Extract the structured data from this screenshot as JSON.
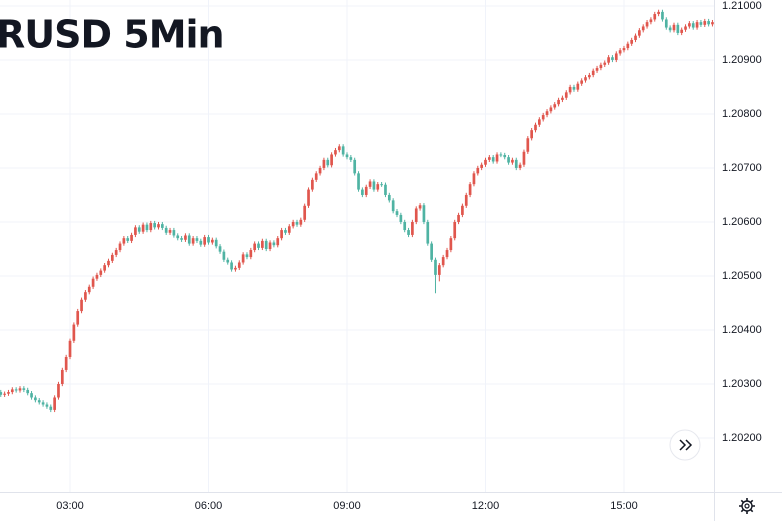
{
  "chart_data": {
    "type": "candlestick",
    "title": "RUSD 5Min",
    "up_color": "#e0564d",
    "down_color": "#4fb3a3",
    "grid": true,
    "xlim": [
      89,
      1017
    ],
    "ylim": [
      1.201,
      1.21011
    ],
    "xticks": [
      {
        "value": 180,
        "label": "03:00"
      },
      {
        "value": 360,
        "label": "06:00"
      },
      {
        "value": 540,
        "label": "09:00"
      },
      {
        "value": 720,
        "label": "12:00"
      },
      {
        "value": 900,
        "label": "15:00"
      }
    ],
    "yticks": [
      {
        "value": 1.202,
        "label": "1.20200"
      },
      {
        "value": 1.203,
        "label": "1.20300"
      },
      {
        "value": 1.204,
        "label": "1.20400"
      },
      {
        "value": 1.205,
        "label": "1.20500"
      },
      {
        "value": 1.206,
        "label": "1.20600"
      },
      {
        "value": 1.207,
        "label": "1.20700"
      },
      {
        "value": 1.208,
        "label": "1.20800"
      },
      {
        "value": 1.209,
        "label": "1.20900"
      },
      {
        "value": 1.21,
        "label": "1.21000"
      }
    ],
    "x": [
      90,
      95,
      100,
      105,
      110,
      115,
      120,
      125,
      130,
      135,
      140,
      145,
      150,
      155,
      160,
      165,
      170,
      175,
      180,
      185,
      190,
      195,
      200,
      205,
      210,
      215,
      220,
      225,
      230,
      235,
      240,
      245,
      250,
      255,
      260,
      265,
      270,
      275,
      280,
      285,
      290,
      295,
      300,
      305,
      310,
      315,
      320,
      325,
      330,
      335,
      340,
      345,
      350,
      355,
      360,
      365,
      370,
      375,
      380,
      385,
      390,
      395,
      400,
      405,
      410,
      415,
      420,
      425,
      430,
      435,
      440,
      445,
      450,
      455,
      460,
      465,
      470,
      475,
      480,
      485,
      490,
      495,
      500,
      505,
      510,
      515,
      520,
      525,
      530,
      535,
      540,
      545,
      550,
      555,
      560,
      565,
      570,
      575,
      580,
      585,
      590,
      595,
      600,
      605,
      610,
      615,
      620,
      625,
      630,
      635,
      640,
      645,
      650,
      655,
      660,
      665,
      670,
      675,
      680,
      685,
      690,
      695,
      700,
      705,
      710,
      715,
      720,
      725,
      730,
      735,
      740,
      745,
      750,
      755,
      760,
      765,
      770,
      775,
      780,
      785,
      790,
      795,
      800,
      805,
      810,
      815,
      820,
      825,
      830,
      835,
      840,
      845,
      850,
      855,
      860,
      865,
      870,
      875,
      880,
      885,
      890,
      895,
      900,
      905,
      910,
      915,
      920,
      925,
      930,
      935,
      940,
      945,
      950,
      955,
      960,
      965,
      970,
      975,
      980,
      985,
      990,
      995,
      1000,
      1005,
      1010,
      1015
    ],
    "open": [
      1.20285,
      1.2028,
      1.20282,
      1.20285,
      1.2029,
      1.20288,
      1.20292,
      1.20289,
      1.20283,
      1.20275,
      1.2027,
      1.20266,
      1.20262,
      1.20258,
      1.20252,
      1.20275,
      1.203,
      1.20326,
      1.2035,
      1.2038,
      1.2041,
      1.20435,
      1.20456,
      1.2047,
      1.2048,
      1.20495,
      1.20502,
      1.2051,
      1.2052,
      1.20528,
      1.20539,
      1.20548,
      1.2056,
      1.2057,
      1.20565,
      1.20576,
      1.2059,
      1.20582,
      1.20595,
      1.20585,
      1.20598,
      1.2059,
      1.20596,
      1.20589,
      1.2058,
      1.20585,
      1.20575,
      1.2057,
      1.20567,
      1.20575,
      1.2056,
      1.2057,
      1.20565,
      1.20558,
      1.20572,
      1.20562,
      1.20567,
      1.20555,
      1.20545,
      1.2053,
      1.20525,
      1.20512,
      1.20515,
      1.20525,
      1.2054,
      1.20535,
      1.20548,
      1.2056,
      1.20552,
      1.20565,
      1.2055,
      1.20562,
      1.20557,
      1.2057,
      1.20585,
      1.2058,
      1.20592,
      1.206,
      1.20595,
      1.20604,
      1.2063,
      1.2066,
      1.20678,
      1.2069,
      1.207,
      1.20715,
      1.20705,
      1.20725,
      1.20733,
      1.2074,
      1.20725,
      1.2072,
      1.20715,
      1.2069,
      1.2066,
      1.2065,
      1.20665,
      1.20675,
      1.2066,
      1.2067,
      1.20669,
      1.2065,
      1.2064,
      1.2062,
      1.20613,
      1.206,
      1.20585,
      1.20576,
      1.206,
      1.20625,
      1.20631,
      1.206,
      1.2056,
      1.2053,
      1.20502,
      1.2052,
      1.20535,
      1.20548,
      1.2057,
      1.206,
      1.20613,
      1.2063,
      1.2065,
      1.2067,
      1.2069,
      1.207,
      1.20706,
      1.20715,
      1.2072,
      1.20712,
      1.20725,
      1.20724,
      1.2072,
      1.2071,
      1.20715,
      1.207,
      1.20706,
      1.2073,
      1.20755,
      1.2077,
      1.2078,
      1.2079,
      1.20798,
      1.20805,
      1.20812,
      1.20818,
      1.20826,
      1.2083,
      1.2084,
      1.2085,
      1.20845,
      1.20856,
      1.20862,
      1.20868,
      1.20872,
      1.2088,
      1.20885,
      1.20891,
      1.20895,
      1.20905,
      1.209,
      1.20912,
      1.20918,
      1.20922,
      1.2093,
      1.20937,
      1.20945,
      1.20955,
      1.20962,
      1.2097,
      1.20975,
      1.20985,
      1.20989,
      1.20975,
      1.2096,
      1.20955,
      1.20965,
      1.2095,
      1.20956,
      1.20962,
      1.20968,
      1.2096,
      1.2097,
      1.20965,
      1.20972,
      1.20966
    ],
    "high": [
      1.20289,
      1.20286,
      1.20289,
      1.20294,
      1.20294,
      1.20296,
      1.20296,
      1.20293,
      1.20287,
      1.20279,
      1.20274,
      1.2027,
      1.20266,
      1.20262,
      1.20279,
      1.20304,
      1.2033,
      1.20354,
      1.20384,
      1.20414,
      1.20439,
      1.2046,
      1.20474,
      1.20484,
      1.20499,
      1.20506,
      1.20514,
      1.20524,
      1.20532,
      1.20543,
      1.20552,
      1.20564,
      1.20574,
      1.20574,
      1.2058,
      1.20594,
      1.20594,
      1.20599,
      1.20599,
      1.20602,
      1.20602,
      1.206,
      1.206,
      1.20593,
      1.20589,
      1.20589,
      1.20579,
      1.20574,
      1.20579,
      1.20579,
      1.20574,
      1.20574,
      1.20569,
      1.20576,
      1.20576,
      1.20571,
      1.20571,
      1.20559,
      1.20549,
      1.20534,
      1.20529,
      1.20519,
      1.20529,
      1.20544,
      1.20544,
      1.20552,
      1.20564,
      1.20564,
      1.20569,
      1.20569,
      1.20566,
      1.20566,
      1.20574,
      1.20589,
      1.20589,
      1.20596,
      1.20604,
      1.20604,
      1.20608,
      1.20634,
      1.20664,
      1.20682,
      1.20694,
      1.20704,
      1.20719,
      1.20719,
      1.20729,
      1.20737,
      1.20744,
      1.20744,
      1.20729,
      1.20724,
      1.20719,
      1.20694,
      1.20664,
      1.20669,
      1.20679,
      1.20679,
      1.20674,
      1.20674,
      1.20673,
      1.20654,
      1.20644,
      1.20624,
      1.20617,
      1.20604,
      1.20589,
      1.20604,
      1.20629,
      1.20635,
      1.20635,
      1.20604,
      1.20564,
      1.20534,
      1.20524,
      1.20539,
      1.20552,
      1.20574,
      1.20604,
      1.20617,
      1.20634,
      1.20654,
      1.20674,
      1.20694,
      1.20704,
      1.2071,
      1.20719,
      1.20724,
      1.20724,
      1.20729,
      1.20729,
      1.20728,
      1.20724,
      1.20719,
      1.20719,
      1.2071,
      1.20734,
      1.20759,
      1.20774,
      1.20784,
      1.20794,
      1.20802,
      1.20809,
      1.20816,
      1.20822,
      1.2083,
      1.20834,
      1.20844,
      1.20854,
      1.20854,
      1.2086,
      1.20866,
      1.20872,
      1.20876,
      1.20884,
      1.20889,
      1.20895,
      1.20899,
      1.20909,
      1.20909,
      1.20916,
      1.20922,
      1.20926,
      1.20934,
      1.20941,
      1.20949,
      1.20959,
      1.20966,
      1.20974,
      1.20979,
      1.20989,
      1.20993,
      1.20993,
      1.20979,
      1.20964,
      1.20969,
      1.20969,
      1.2096,
      1.20966,
      1.20972,
      1.20972,
      1.20974,
      1.20974,
      1.20976,
      1.20976,
      1.20974
    ],
    "low": [
      1.20276,
      1.20276,
      1.20278,
      1.20281,
      1.20284,
      1.20284,
      1.20285,
      1.20279,
      1.20271,
      1.20266,
      1.20262,
      1.20258,
      1.20254,
      1.20248,
      1.20248,
      1.20271,
      1.20296,
      1.20322,
      1.20346,
      1.20376,
      1.20406,
      1.20431,
      1.20452,
      1.20466,
      1.20476,
      1.20491,
      1.20498,
      1.20506,
      1.20516,
      1.20524,
      1.20535,
      1.20544,
      1.20556,
      1.20561,
      1.20561,
      1.20572,
      1.20578,
      1.20578,
      1.20581,
      1.20581,
      1.20586,
      1.20586,
      1.20585,
      1.20576,
      1.20576,
      1.20571,
      1.20566,
      1.20563,
      1.20563,
      1.20556,
      1.20556,
      1.20561,
      1.20554,
      1.20554,
      1.20558,
      1.20558,
      1.20551,
      1.20541,
      1.20526,
      1.20521,
      1.20508,
      1.20508,
      1.20511,
      1.20521,
      1.20531,
      1.20531,
      1.20544,
      1.20548,
      1.20548,
      1.20546,
      1.20546,
      1.20553,
      1.20553,
      1.20566,
      1.20576,
      1.20576,
      1.20588,
      1.20591,
      1.20591,
      1.206,
      1.20626,
      1.20656,
      1.20674,
      1.20686,
      1.20696,
      1.20701,
      1.20701,
      1.20721,
      1.20729,
      1.20721,
      1.20716,
      1.20711,
      1.20686,
      1.20656,
      1.20646,
      1.20646,
      1.20661,
      1.20656,
      1.20656,
      1.20665,
      1.20646,
      1.20636,
      1.20616,
      1.20609,
      1.20596,
      1.20581,
      1.20572,
      1.20572,
      1.20596,
      1.20621,
      1.20596,
      1.20556,
      1.20526,
      1.20468,
      1.2049,
      1.20516,
      1.20531,
      1.20544,
      1.20566,
      1.20596,
      1.20609,
      1.20626,
      1.20646,
      1.20666,
      1.20686,
      1.20696,
      1.20702,
      1.20711,
      1.20708,
      1.20708,
      1.2072,
      1.20716,
      1.20706,
      1.20706,
      1.20696,
      1.20696,
      1.20702,
      1.20726,
      1.20751,
      1.20766,
      1.20776,
      1.20786,
      1.20794,
      1.20801,
      1.20808,
      1.20814,
      1.20822,
      1.20826,
      1.20836,
      1.20841,
      1.20841,
      1.20852,
      1.20858,
      1.20864,
      1.20868,
      1.20876,
      1.20881,
      1.20887,
      1.20891,
      1.20896,
      1.20896,
      1.20908,
      1.20914,
      1.20918,
      1.20926,
      1.20933,
      1.20941,
      1.20951,
      1.20958,
      1.20966,
      1.20971,
      1.20981,
      1.20971,
      1.20956,
      1.20951,
      1.20951,
      1.20946,
      1.20946,
      1.20952,
      1.20958,
      1.20956,
      1.20956,
      1.20961,
      1.20961,
      1.20962,
      1.20962
    ],
    "close": [
      1.2028,
      1.20282,
      1.20285,
      1.2029,
      1.20288,
      1.20292,
      1.20289,
      1.20283,
      1.20275,
      1.2027,
      1.20266,
      1.20262,
      1.20258,
      1.20252,
      1.20275,
      1.203,
      1.20326,
      1.2035,
      1.2038,
      1.2041,
      1.20435,
      1.20456,
      1.2047,
      1.2048,
      1.20495,
      1.20502,
      1.2051,
      1.2052,
      1.20528,
      1.20539,
      1.20548,
      1.2056,
      1.2057,
      1.20565,
      1.20576,
      1.2059,
      1.20582,
      1.20595,
      1.20585,
      1.20598,
      1.2059,
      1.20596,
      1.20589,
      1.2058,
      1.20585,
      1.20575,
      1.2057,
      1.20567,
      1.20575,
      1.2056,
      1.2057,
      1.20565,
      1.20558,
      1.20572,
      1.20562,
      1.20567,
      1.20555,
      1.20545,
      1.2053,
      1.20525,
      1.20512,
      1.20515,
      1.20525,
      1.2054,
      1.20535,
      1.20548,
      1.2056,
      1.20552,
      1.20565,
      1.2055,
      1.20562,
      1.20557,
      1.2057,
      1.20585,
      1.2058,
      1.20592,
      1.206,
      1.20595,
      1.20604,
      1.2063,
      1.2066,
      1.20678,
      1.2069,
      1.207,
      1.20715,
      1.20705,
      1.20725,
      1.20733,
      1.2074,
      1.20725,
      1.2072,
      1.20715,
      1.2069,
      1.2066,
      1.2065,
      1.20665,
      1.20675,
      1.2066,
      1.2067,
      1.20669,
      1.2065,
      1.2064,
      1.2062,
      1.20613,
      1.206,
      1.20585,
      1.20576,
      1.206,
      1.20625,
      1.20631,
      1.206,
      1.2056,
      1.2053,
      1.20502,
      1.2052,
      1.20535,
      1.20548,
      1.2057,
      1.206,
      1.20613,
      1.2063,
      1.2065,
      1.2067,
      1.2069,
      1.207,
      1.20706,
      1.20715,
      1.2072,
      1.20712,
      1.20725,
      1.20724,
      1.2072,
      1.2071,
      1.20715,
      1.207,
      1.20706,
      1.2073,
      1.20755,
      1.2077,
      1.2078,
      1.2079,
      1.20798,
      1.20805,
      1.20812,
      1.20818,
      1.20826,
      1.2083,
      1.2084,
      1.2085,
      1.20845,
      1.20856,
      1.20862,
      1.20868,
      1.20872,
      1.2088,
      1.20885,
      1.20891,
      1.20895,
      1.20905,
      1.209,
      1.20912,
      1.20918,
      1.20922,
      1.2093,
      1.20937,
      1.20945,
      1.20955,
      1.20962,
      1.2097,
      1.20975,
      1.20985,
      1.20989,
      1.20975,
      1.2096,
      1.20955,
      1.20965,
      1.2095,
      1.20956,
      1.20962,
      1.20968,
      1.2096,
      1.2097,
      1.20965,
      1.20972,
      1.20966,
      1.2097
    ]
  }
}
